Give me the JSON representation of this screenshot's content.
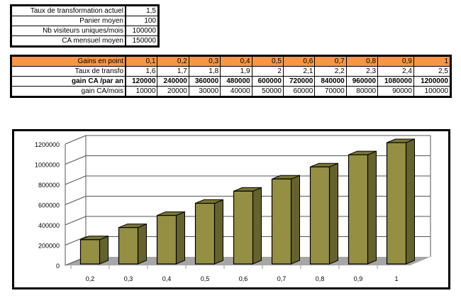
{
  "summary": {
    "rows": [
      {
        "label": "Taux de transformation actuel",
        "value": "1,5"
      },
      {
        "label": "Panier moyen",
        "value": "100"
      },
      {
        "label": "Nb visiteurs uniques/mois",
        "value": "100000"
      },
      {
        "label": "CA mensuel moyen",
        "value": "150000"
      }
    ]
  },
  "gains": {
    "header_label": "Gains en point",
    "header_color": "#f79646",
    "points": [
      "0,1",
      "0,2",
      "0,3",
      "0,4",
      "0,5",
      "0,6",
      "0,7",
      "0,8",
      "0,9",
      "1"
    ],
    "rows": [
      {
        "label": "Taux de transfo",
        "values": [
          "1,6",
          "1,7",
          "1,8",
          "1,9",
          "2",
          "2,1",
          "2,2",
          "2,3",
          "2,4",
          "2,5"
        ]
      },
      {
        "label": "gain CA /par an",
        "values": [
          "120000",
          "240000",
          "360000",
          "480000",
          "600000",
          "720000",
          "840000",
          "960000",
          "1080000",
          "1200000"
        ]
      },
      {
        "label": "gain CA/mois",
        "values": [
          "10000",
          "20000",
          "30000",
          "40000",
          "50000",
          "60000",
          "70000",
          "80000",
          "90000",
          "100000"
        ]
      }
    ]
  },
  "chart_data": {
    "type": "bar",
    "style": "3d-column",
    "categories": [
      "0,2",
      "0,3",
      "0,4",
      "0,5",
      "0,6",
      "0,7",
      "0,8",
      "0,9",
      "1"
    ],
    "values": [
      240000,
      360000,
      480000,
      600000,
      720000,
      840000,
      960000,
      1080000,
      1200000
    ],
    "y_ticks": [
      "0",
      "200000",
      "400000",
      "600000",
      "800000",
      "1000000",
      "1200000"
    ],
    "ylim": [
      0,
      1200000
    ],
    "grid": true,
    "legend": "none",
    "bar_color": "#948f42",
    "bar_side_color": "#65622c",
    "floor_color": "#a6a6a6"
  }
}
